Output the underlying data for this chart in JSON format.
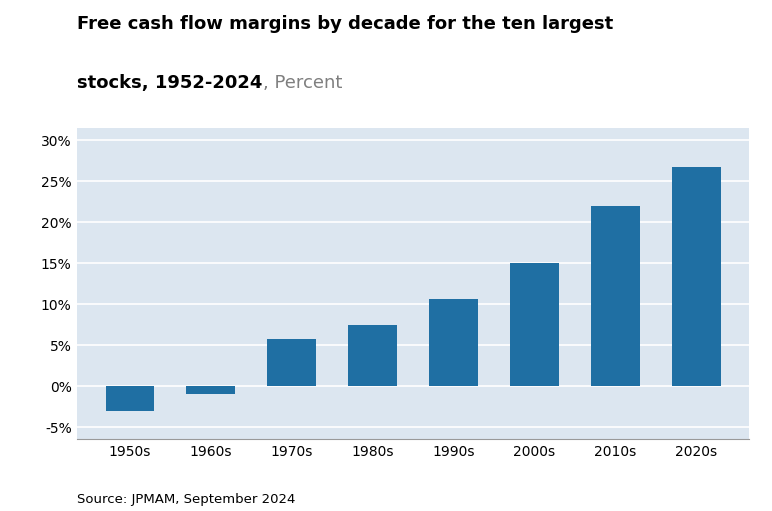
{
  "title_line1": "Free cash flow margins by decade for the ten largest",
  "title_line2_bold": "stocks, 1952-2024",
  "title_line2_regular": ", Percent",
  "categories": [
    "1950s",
    "1960s",
    "1970s",
    "1980s",
    "1990s",
    "2000s",
    "2010s",
    "2020s"
  ],
  "values": [
    -3.0,
    -1.0,
    5.7,
    7.4,
    10.6,
    15.0,
    22.0,
    26.7
  ],
  "bar_color": "#1F6FA3",
  "background_color": "#DCE6F0",
  "outer_background": "#FFFFFF",
  "yticks": [
    -5,
    0,
    5,
    10,
    15,
    20,
    25,
    30
  ],
  "ytick_labels": [
    "-5%",
    "0%",
    "5%",
    "10%",
    "15%",
    "20%",
    "25%",
    "30%"
  ],
  "ylim": [
    -6.5,
    31.5
  ],
  "source": "Source: JPMAM, September 2024",
  "grid_color": "#FFFFFF",
  "title_fontsize": 13.0,
  "axis_fontsize": 10.0,
  "source_fontsize": 9.5,
  "percent_color": "#7F7F7F",
  "title_color": "#000000"
}
